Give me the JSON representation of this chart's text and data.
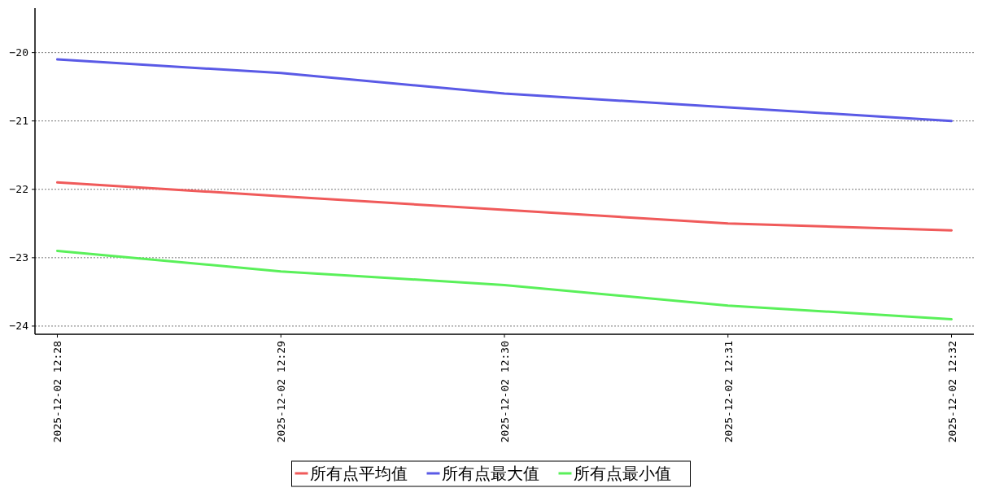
{
  "chart_data": {
    "type": "line",
    "categories": [
      "2025-12-02 12:28",
      "2025-12-02 12:29",
      "2025-12-02 12:30",
      "2025-12-02 12:31",
      "2025-12-02 12:32"
    ],
    "series": [
      {
        "name": "所有点平均值",
        "color": "#f05a5a",
        "values": [
          -21.9,
          -22.1,
          -22.3,
          -22.5,
          -22.6
        ]
      },
      {
        "name": "所有点最大值",
        "color": "#5a5ae6",
        "values": [
          -20.1,
          -20.3,
          -20.6,
          -20.8,
          -21.0
        ]
      },
      {
        "name": "所有点最小值",
        "color": "#5af05a",
        "values": [
          -22.9,
          -23.2,
          -23.4,
          -23.7,
          -23.9
        ]
      }
    ],
    "ylim": [
      -24.12,
      -19.35
    ],
    "yticks": [
      -24,
      -23,
      -22,
      -21,
      -20
    ],
    "grid": "y",
    "legend": "bottom",
    "marker": "none",
    "line_style": "solid"
  }
}
